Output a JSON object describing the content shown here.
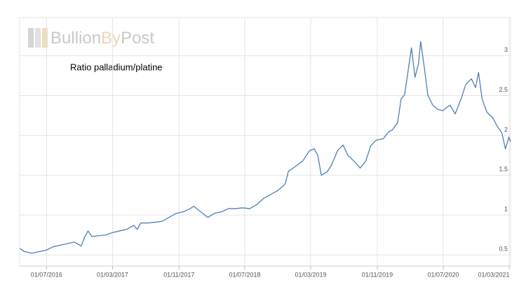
{
  "chart_data": {
    "type": "line",
    "title": "Ratio palladium/platine",
    "logo": [
      "Bullion",
      "By",
      "Post"
    ],
    "series": [
      {
        "name": "Ratio palladium/platine",
        "color": "#4f7fb5",
        "x": [
          "2016-03-24",
          "2016-04-12",
          "2016-05-08",
          "2016-06-03",
          "2016-07-01",
          "2016-07-24",
          "2016-08-19",
          "2016-09-15",
          "2016-10-11",
          "2016-11-06",
          "2016-11-19",
          "2016-12-01",
          "2016-12-15",
          "2017-01-10",
          "2017-02-05",
          "2017-03-01",
          "2017-03-27",
          "2017-04-22",
          "2017-05-18",
          "2017-05-31",
          "2017-06-13",
          "2017-07-09",
          "2017-08-04",
          "2017-08-30",
          "2017-09-25",
          "2017-10-21",
          "2017-11-16",
          "2017-12-12",
          "2017-12-25",
          "2018-01-20",
          "2018-02-15",
          "2018-03-11",
          "2018-04-06",
          "2018-05-02",
          "2018-05-28",
          "2018-06-23",
          "2018-07-19",
          "2018-08-14",
          "2018-09-09",
          "2018-10-05",
          "2018-11-01",
          "2018-11-27",
          "2018-12-09",
          "2019-01-04",
          "2019-01-31",
          "2019-02-25",
          "2019-03-14",
          "2019-03-27",
          "2019-04-09",
          "2019-04-30",
          "2019-05-17",
          "2019-06-08",
          "2019-06-28",
          "2019-07-16",
          "2019-08-12",
          "2019-08-30",
          "2019-09-20",
          "2019-10-08",
          "2019-10-28",
          "2019-11-24",
          "2019-12-12",
          "2019-12-27",
          "2020-01-15",
          "2020-01-28",
          "2020-02-10",
          "2020-02-23",
          "2020-03-06",
          "2020-03-19",
          "2020-04-01",
          "2020-04-09",
          "2020-04-22",
          "2020-05-05",
          "2020-05-23",
          "2020-06-10",
          "2020-06-29",
          "2020-07-26",
          "2020-08-14",
          "2020-09-05",
          "2020-09-22",
          "2020-10-13",
          "2020-10-28",
          "2020-11-08",
          "2020-11-21",
          "2020-12-09",
          "2020-12-30",
          "2021-01-17",
          "2021-02-02",
          "2021-02-15",
          "2021-02-28",
          "2021-03-06"
        ],
        "values": [
          0.58,
          0.54,
          0.52,
          0.54,
          0.56,
          0.6,
          0.62,
          0.64,
          0.66,
          0.61,
          0.73,
          0.8,
          0.73,
          0.74,
          0.75,
          0.78,
          0.8,
          0.82,
          0.87,
          0.82,
          0.9,
          0.9,
          0.91,
          0.92,
          0.97,
          1.02,
          1.04,
          1.08,
          1.11,
          1.04,
          0.97,
          1.02,
          1.04,
          1.08,
          1.08,
          1.09,
          1.08,
          1.13,
          1.21,
          1.26,
          1.31,
          1.39,
          1.55,
          1.61,
          1.68,
          1.81,
          1.83,
          1.75,
          1.5,
          1.54,
          1.63,
          1.81,
          1.88,
          1.75,
          1.66,
          1.59,
          1.68,
          1.87,
          1.94,
          1.96,
          2.04,
          2.07,
          2.16,
          2.46,
          2.51,
          2.82,
          3.1,
          2.73,
          2.9,
          3.18,
          2.86,
          2.51,
          2.38,
          2.33,
          2.31,
          2.38,
          2.27,
          2.46,
          2.64,
          2.71,
          2.6,
          2.79,
          2.46,
          2.29,
          2.22,
          2.11,
          2.03,
          1.83,
          1.98,
          1.92
        ]
      }
    ],
    "xlim": [
      "2016-03-24",
      "2021-03-06"
    ],
    "xticks": [
      {
        "value": "2016-07-01",
        "label": "01/07/2016"
      },
      {
        "value": "2017-03-01",
        "label": "01/03/2017"
      },
      {
        "value": "2017-11-01",
        "label": "01/11/2017"
      },
      {
        "value": "2018-07-01",
        "label": "01/07/2018"
      },
      {
        "value": "2019-03-01",
        "label": "01/03/2019"
      },
      {
        "value": "2019-11-01",
        "label": "01/11/2019"
      },
      {
        "value": "2020-07-01",
        "label": "01/07/2020"
      },
      {
        "value": "2021-03-01",
        "label": "01/03/2021"
      }
    ],
    "ylim": [
      0.36,
      3.48
    ],
    "yticks": [
      0.5,
      1,
      1.5,
      2,
      2.5,
      3
    ],
    "grid": true
  }
}
